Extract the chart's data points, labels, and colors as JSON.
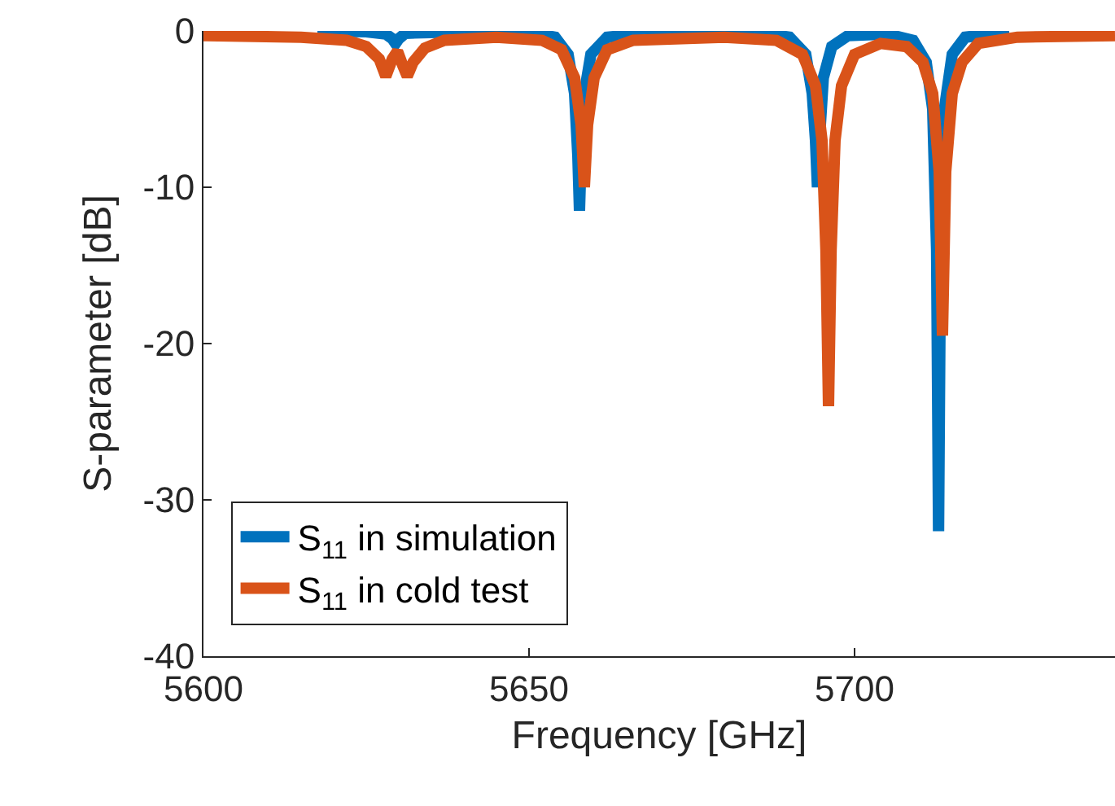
{
  "chart_data": {
    "type": "line",
    "xlabel": "Frequency [GHz]",
    "ylabel": "S-parameter [dB]",
    "xlim": [
      5600,
      5740
    ],
    "xticks": [
      5600,
      5650,
      5700
    ],
    "ylim": [
      -40,
      0
    ],
    "yticks": [
      -40,
      -30,
      -20,
      -10,
      0
    ],
    "grid": false,
    "legend": "bottom left",
    "marker": "none",
    "line_style": "solid",
    "series": [
      {
        "name": "S$_{11}$ in simulation",
        "color": "#0072bd",
        "x": [
          5617.5,
          5625,
          5628,
          5629,
          5629.5,
          5630,
          5631,
          5640,
          5650,
          5654,
          5656,
          5657,
          5657.5,
          5657.75,
          5658,
          5658.5,
          5659.5,
          5662,
          5670,
          5685,
          5690,
          5692.5,
          5693.5,
          5694,
          5694.3,
          5694.6,
          5695.2,
          5696.5,
          5699,
          5705,
          5709,
          5711,
          5712,
          5712.6,
          5712.9,
          5713.2,
          5713.8,
          5715,
          5717,
          5723.75
        ],
        "values": [
          0,
          -0.05,
          -0.2,
          -0.5,
          -0.8,
          -0.5,
          -0.15,
          -0.05,
          -0.1,
          -0.4,
          -1.5,
          -4,
          -8,
          -11.5,
          -8,
          -4,
          -1.5,
          -0.4,
          -0.1,
          -0.1,
          -0.4,
          -1.5,
          -4,
          -7,
          -10,
          -7,
          -3,
          -1,
          -0.3,
          -0.2,
          -0.6,
          -2,
          -5,
          -14,
          -32,
          -14,
          -5,
          -1.5,
          -0.4,
          -0.05
        ]
      },
      {
        "name": "S$_{11}$ in cold test",
        "color": "#d95319",
        "x": [
          5600,
          5615,
          5622,
          5625,
          5627,
          5628,
          5629,
          5629.8,
          5630.6,
          5631.3,
          5632.2,
          5634,
          5637,
          5645,
          5652,
          5655,
          5657,
          5658,
          5658.5,
          5659,
          5660,
          5662,
          5666,
          5680,
          5688,
          5692,
          5694,
          5695,
          5695.6,
          5696,
          5696.4,
          5697,
          5698,
          5700,
          5704,
          5708,
          5710.5,
          5712,
          5713,
          5713.5,
          5714,
          5715,
          5716.5,
          5719,
          5725,
          5740
        ],
        "values": [
          -0.3,
          -0.4,
          -0.6,
          -1,
          -1.8,
          -2.9,
          -1.8,
          -1.3,
          -2.2,
          -2.9,
          -2,
          -1.1,
          -0.6,
          -0.4,
          -0.6,
          -1.2,
          -3,
          -6,
          -10,
          -6,
          -3,
          -1.2,
          -0.6,
          -0.4,
          -0.6,
          -1.5,
          -3.5,
          -7,
          -14,
          -24,
          -14,
          -7,
          -3.5,
          -1.5,
          -0.8,
          -1,
          -2,
          -4,
          -9,
          -19.5,
          -9,
          -4,
          -2,
          -0.8,
          -0.4,
          -0.3
        ]
      }
    ]
  }
}
